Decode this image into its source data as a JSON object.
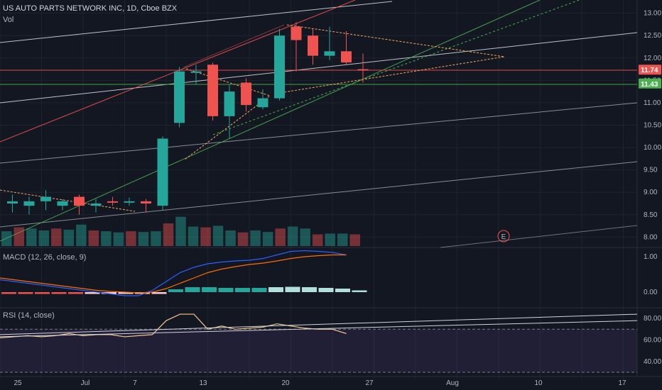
{
  "header": {
    "symbol_line": "US AUTO PARTS NETWORK INC, 1D, Cboe BZX",
    "vol_label": "Vol"
  },
  "macd": {
    "label": "MACD (12, 26, close, 9)"
  },
  "rsi": {
    "label": "RSI (14, close)"
  },
  "colors": {
    "background": "#131722",
    "up": "#26a69a",
    "down": "#ef5350",
    "grid": "#1e2330"
  },
  "chart_data": [
    {
      "type": "candlestick",
      "panel": "price",
      "ylim": [
        7.8,
        13.2
      ],
      "yticks": [
        "13.00",
        "12.50",
        "12.00",
        "11.50",
        "11.00",
        "10.50",
        "10.00",
        "9.50",
        "9.00",
        "8.50",
        "8.00"
      ],
      "x_labels": [
        "25",
        "Jul",
        "7",
        "13",
        "20",
        "27",
        "Aug",
        "10",
        "17"
      ],
      "candles": [
        {
          "o": 8.75,
          "h": 8.95,
          "l": 8.55,
          "c": 8.8
        },
        {
          "o": 8.7,
          "h": 8.9,
          "l": 8.5,
          "c": 8.8
        },
        {
          "o": 8.8,
          "h": 9.05,
          "l": 8.6,
          "c": 8.9
        },
        {
          "o": 8.7,
          "h": 8.85,
          "l": 8.6,
          "c": 8.8
        },
        {
          "o": 8.9,
          "h": 8.95,
          "l": 8.5,
          "c": 8.7
        },
        {
          "o": 8.7,
          "h": 8.85,
          "l": 8.55,
          "c": 8.75
        },
        {
          "o": 8.8,
          "h": 8.9,
          "l": 8.7,
          "c": 8.78
        },
        {
          "o": 8.78,
          "h": 8.88,
          "l": 8.7,
          "c": 8.8
        },
        {
          "o": 8.8,
          "h": 8.85,
          "l": 8.55,
          "c": 8.75
        },
        {
          "o": 8.7,
          "h": 10.25,
          "l": 8.6,
          "c": 10.2
        },
        {
          "o": 10.55,
          "h": 11.8,
          "l": 10.45,
          "c": 11.7
        },
        {
          "o": 11.7,
          "h": 11.85,
          "l": 11.4,
          "c": 11.7
        },
        {
          "o": 11.85,
          "h": 11.9,
          "l": 10.6,
          "c": 10.7
        },
        {
          "o": 10.7,
          "h": 11.4,
          "l": 10.2,
          "c": 11.25
        },
        {
          "o": 11.45,
          "h": 11.55,
          "l": 10.8,
          "c": 10.95
        },
        {
          "o": 10.9,
          "h": 11.3,
          "l": 10.85,
          "c": 11.1
        },
        {
          "o": 11.1,
          "h": 12.65,
          "l": 11.05,
          "c": 12.5
        },
        {
          "o": 12.7,
          "h": 12.8,
          "l": 11.7,
          "c": 12.4
        },
        {
          "o": 12.5,
          "h": 12.65,
          "l": 11.85,
          "c": 12.05
        },
        {
          "o": 12.05,
          "h": 12.7,
          "l": 11.95,
          "c": 12.15
        },
        {
          "o": 12.15,
          "h": 12.6,
          "l": 11.85,
          "c": 11.9
        },
        {
          "o": 11.75,
          "h": 12.1,
          "l": 11.45,
          "c": 11.74
        }
      ],
      "last_price": "11.74",
      "support_price": "11.43",
      "earnings_marker": "E"
    },
    {
      "type": "bar",
      "panel": "volume",
      "note_series": "Vol",
      "values": [
        38,
        48,
        45,
        40,
        45,
        42,
        55,
        40,
        38,
        35,
        38,
        36,
        38,
        58,
        75,
        50,
        48,
        52,
        40,
        35,
        40,
        36,
        45,
        50,
        45,
        30,
        32,
        32,
        30
      ]
    },
    {
      "type": "line",
      "panel": "macd",
      "ylim": [
        -0.4,
        1.2
      ],
      "yticks": [
        "1.00",
        "0.00"
      ],
      "series": [
        {
          "key": "macd",
          "values": [
            0.35,
            0.3,
            0.25,
            0.2,
            0.15,
            0.1,
            0.05,
            0.0,
            -0.05,
            -0.1,
            -0.1,
            0.05,
            0.3,
            0.55,
            0.7,
            0.8,
            0.85,
            0.88,
            0.9,
            0.95,
            1.05,
            1.15,
            1.17,
            1.15,
            1.12,
            1.05
          ]
        },
        {
          "key": "signal",
          "values": [
            0.4,
            0.35,
            0.3,
            0.25,
            0.2,
            0.15,
            0.1,
            0.05,
            0.02,
            0.0,
            -0.02,
            0.0,
            0.1,
            0.25,
            0.4,
            0.55,
            0.65,
            0.72,
            0.78,
            0.82,
            0.88,
            0.95,
            1.0,
            1.03,
            1.05,
            1.05
          ]
        }
      ],
      "histogram": [
        -0.05,
        -0.05,
        -0.05,
        -0.05,
        -0.05,
        -0.05,
        -0.05,
        -0.05,
        -0.05,
        -0.05,
        0.08,
        0.14,
        0.14,
        0.12,
        0.12,
        0.12,
        0.14,
        0.15,
        0.14,
        0.12,
        0.1,
        0.05
      ]
    },
    {
      "type": "line",
      "panel": "rsi",
      "ylim": [
        28,
        88
      ],
      "yticks": [
        "80.00",
        "60.00",
        "40.00"
      ],
      "values": [
        62,
        63,
        64,
        63,
        64,
        66,
        64,
        65,
        65,
        63,
        64,
        65,
        78,
        84,
        84,
        70,
        73,
        70,
        71,
        72,
        75,
        73,
        71,
        70,
        70,
        66
      ]
    }
  ]
}
